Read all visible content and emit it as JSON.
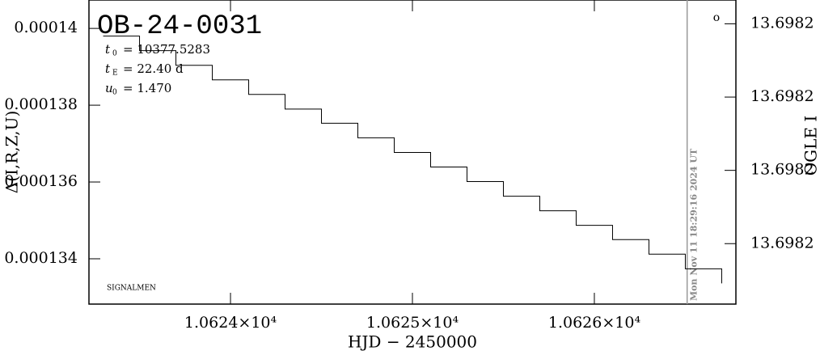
{
  "chart_data": {
    "type": "line",
    "title": "OB-24-0031",
    "parameters": [
      {
        "symbol": "t",
        "subscript": "0",
        "text": "= 10377.5283"
      },
      {
        "symbol": "t",
        "subscript": "E",
        "text": "= 22.40  d"
      },
      {
        "symbol": "u",
        "subscript": "0",
        "text": "= 1.470"
      }
    ],
    "note": "SIGNALMEN",
    "marker_label": "o",
    "x_label": "HJD − 2450000",
    "y_label": "Δ(I,R,Z,U)",
    "y2_label": "OGLE I",
    "time_line": {
      "x": 10626.51,
      "label": "Mon Nov 11 18:29:16 2024 UT"
    },
    "xlim": [
      10623.222,
      10626.778
    ],
    "xticks": [
      {
        "value": 10624,
        "label": "1.0624×10⁴"
      },
      {
        "value": 10625,
        "label": "1.0625×10⁴"
      },
      {
        "value": 10626,
        "label": "1.0626×10⁴"
      }
    ],
    "ylim": [
      0.00013282,
      0.00014074
    ],
    "yticks": [
      0.00014,
      0.000138,
      0.000136,
      0.000134
    ],
    "y2lim": [
      13.6981535,
      13.6982365
    ],
    "y2ticks": [
      {
        "value": 13.69823,
        "label": "13.6982"
      },
      {
        "value": 13.69821,
        "label": "13.6982"
      },
      {
        "value": 13.69819,
        "label": "13.6982"
      },
      {
        "value": 13.69817,
        "label": "13.6982"
      }
    ],
    "series": [
      {
        "color": "#000000",
        "x": [
          10623.3,
          10623.5,
          10623.7,
          10623.9,
          10624.1,
          10624.3,
          10624.5,
          10624.7,
          10624.9,
          10625.1,
          10625.3,
          10625.5,
          10625.7,
          10625.9,
          10626.1,
          10626.3,
          10626.5,
          10626.7
        ],
        "values": [
          0.0001398,
          0.00013942,
          0.00013904,
          0.00013866,
          0.00013828,
          0.0001379,
          0.00013753,
          0.00013715,
          0.00013677,
          0.00013639,
          0.00013601,
          0.00013563,
          0.00013525,
          0.00013487,
          0.0001345,
          0.00013412,
          0.00013374,
          0.00013336
        ]
      }
    ]
  }
}
